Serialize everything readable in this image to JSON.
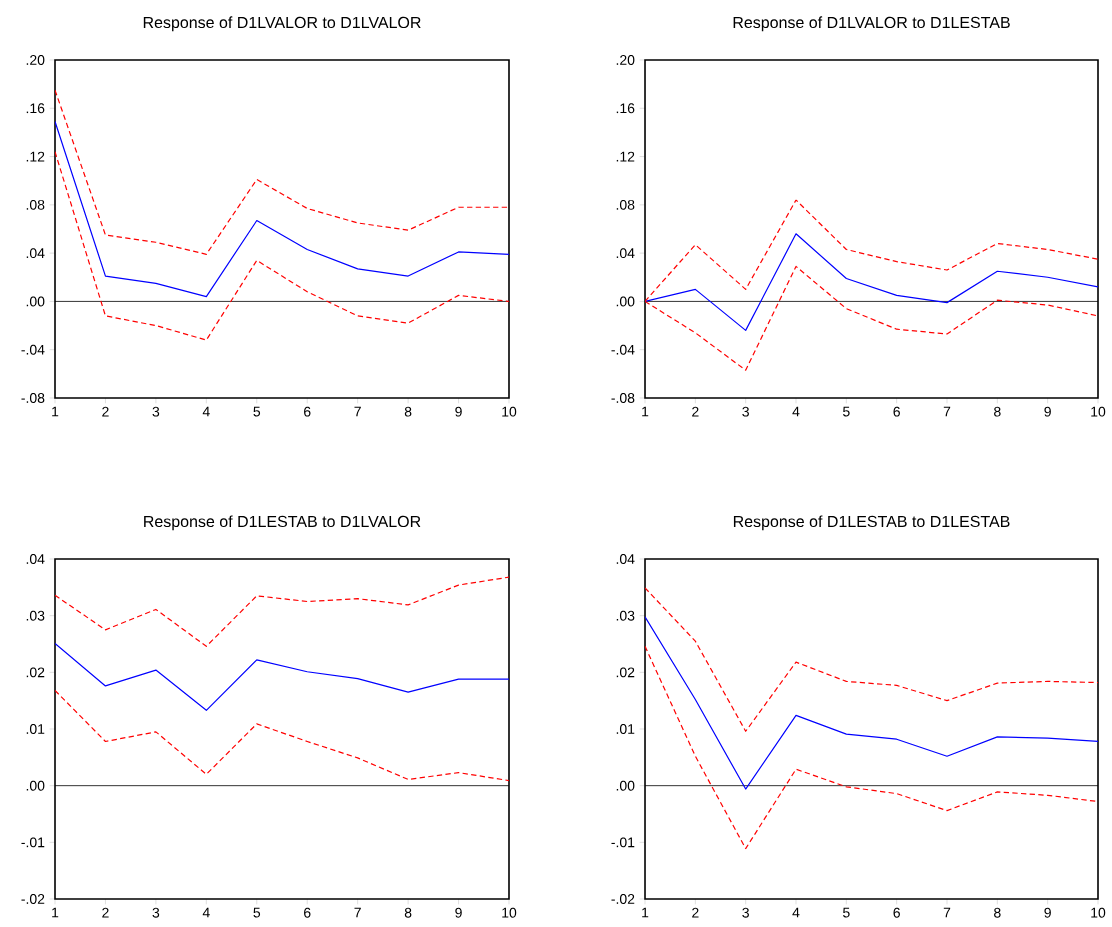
{
  "chart_data": [
    {
      "type": "line",
      "title": "Response of D1LVALOR to D1LVALOR",
      "x": [
        1,
        2,
        3,
        4,
        5,
        6,
        7,
        8,
        9,
        10
      ],
      "xlim": [
        1,
        10
      ],
      "xticks": [
        1,
        2,
        3,
        4,
        5,
        6,
        7,
        8,
        9,
        10
      ],
      "ylim": [
        -0.08,
        0.2
      ],
      "yticks": [
        {
          "value": -0.08,
          "label": "-.08"
        },
        {
          "value": -0.04,
          "label": "-.04"
        },
        {
          "value": 0,
          "label": ".00"
        },
        {
          "value": 0.04,
          "label": ".04"
        },
        {
          "value": 0.08,
          "label": ".08"
        },
        {
          "value": 0.12,
          "label": ".12"
        },
        {
          "value": 0.16,
          "label": ".16"
        },
        {
          "value": 0.2,
          "label": ".20"
        }
      ],
      "ref_lines": [
        {
          "axis": "y",
          "value": 0,
          "color": "#000000"
        }
      ],
      "series": [
        {
          "color": "#0000ff",
          "line_style": "solid",
          "values": [
            0.149,
            0.021,
            0.015,
            0.004,
            0.067,
            0.043,
            0.027,
            0.021,
            0.041,
            0.039
          ]
        },
        {
          "color": "#ff0000",
          "line_style": "dashed",
          "values": [
            0.175,
            0.055,
            0.049,
            0.039,
            0.101,
            0.077,
            0.065,
            0.059,
            0.078,
            0.078
          ]
        },
        {
          "color": "#ff0000",
          "line_style": "dashed",
          "values": [
            0.124,
            -0.012,
            -0.02,
            -0.032,
            0.034,
            0.008,
            -0.012,
            -0.018,
            0.005,
            0.0
          ]
        }
      ]
    },
    {
      "type": "line",
      "title": "Response of D1LVALOR to D1LESTAB",
      "x": [
        1,
        2,
        3,
        4,
        5,
        6,
        7,
        8,
        9,
        10
      ],
      "xlim": [
        1,
        10
      ],
      "xticks": [
        1,
        2,
        3,
        4,
        5,
        6,
        7,
        8,
        9,
        10
      ],
      "ylim": [
        -0.08,
        0.2
      ],
      "yticks": [
        {
          "value": -0.08,
          "label": "-.08"
        },
        {
          "value": -0.04,
          "label": "-.04"
        },
        {
          "value": 0,
          "label": ".00"
        },
        {
          "value": 0.04,
          "label": ".04"
        },
        {
          "value": 0.08,
          "label": ".08"
        },
        {
          "value": 0.12,
          "label": ".12"
        },
        {
          "value": 0.16,
          "label": ".16"
        },
        {
          "value": 0.2,
          "label": ".20"
        }
      ],
      "ref_lines": [
        {
          "axis": "y",
          "value": 0,
          "color": "#000000"
        }
      ],
      "series": [
        {
          "color": "#0000ff",
          "line_style": "solid",
          "values": [
            0.0,
            0.01,
            -0.024,
            0.056,
            0.019,
            0.005,
            -0.001,
            0.025,
            0.02,
            0.012
          ]
        },
        {
          "color": "#ff0000",
          "line_style": "dashed",
          "values": [
            0.0,
            0.047,
            0.01,
            0.084,
            0.043,
            0.033,
            0.026,
            0.048,
            0.043,
            0.035
          ]
        },
        {
          "color": "#ff0000",
          "line_style": "dashed",
          "values": [
            0.0,
            -0.026,
            -0.057,
            0.029,
            -0.006,
            -0.023,
            -0.027,
            0.001,
            -0.003,
            -0.012
          ]
        }
      ]
    },
    {
      "type": "line",
      "title": "Response of D1LESTAB to D1LVALOR",
      "x": [
        1,
        2,
        3,
        4,
        5,
        6,
        7,
        8,
        9,
        10
      ],
      "xlim": [
        1,
        10
      ],
      "xticks": [
        1,
        2,
        3,
        4,
        5,
        6,
        7,
        8,
        9,
        10
      ],
      "ylim": [
        -0.02,
        0.04
      ],
      "yticks": [
        {
          "value": -0.02,
          "label": "-.02"
        },
        {
          "value": -0.01,
          "label": "-.01"
        },
        {
          "value": 0,
          "label": ".00"
        },
        {
          "value": 0.01,
          "label": ".01"
        },
        {
          "value": 0.02,
          "label": ".02"
        },
        {
          "value": 0.03,
          "label": ".03"
        },
        {
          "value": 0.04,
          "label": ".04"
        }
      ],
      "ref_lines": [
        {
          "axis": "y",
          "value": 0,
          "color": "#000000"
        }
      ],
      "series": [
        {
          "color": "#0000ff",
          "line_style": "solid",
          "values": [
            0.0251,
            0.0176,
            0.0204,
            0.0133,
            0.0222,
            0.0201,
            0.0189,
            0.0165,
            0.0188,
            0.0188
          ]
        },
        {
          "color": "#ff0000",
          "line_style": "dashed",
          "values": [
            0.0336,
            0.0275,
            0.0311,
            0.0246,
            0.0335,
            0.0325,
            0.033,
            0.0319,
            0.0354,
            0.0368
          ]
        },
        {
          "color": "#ff0000",
          "line_style": "dashed",
          "values": [
            0.0168,
            0.0078,
            0.0095,
            0.002,
            0.0109,
            0.0078,
            0.0049,
            0.0011,
            0.0023,
            0.0009
          ]
        }
      ]
    },
    {
      "type": "line",
      "title": "Response of D1LESTAB to D1LESTAB",
      "x": [
        1,
        2,
        3,
        4,
        5,
        6,
        7,
        8,
        9,
        10
      ],
      "xlim": [
        1,
        10
      ],
      "xticks": [
        1,
        2,
        3,
        4,
        5,
        6,
        7,
        8,
        9,
        10
      ],
      "ylim": [
        -0.02,
        0.04
      ],
      "yticks": [
        {
          "value": -0.02,
          "label": "-.02"
        },
        {
          "value": -0.01,
          "label": "-.01"
        },
        {
          "value": 0,
          "label": ".00"
        },
        {
          "value": 0.01,
          "label": ".01"
        },
        {
          "value": 0.02,
          "label": ".02"
        },
        {
          "value": 0.03,
          "label": ".03"
        },
        {
          "value": 0.04,
          "label": ".04"
        }
      ],
      "ref_lines": [
        {
          "axis": "y",
          "value": 0,
          "color": "#000000"
        }
      ],
      "series": [
        {
          "color": "#0000ff",
          "line_style": "solid",
          "values": [
            0.0298,
            0.0152,
            -0.0006,
            0.0124,
            0.0091,
            0.0082,
            0.0052,
            0.0086,
            0.0084,
            0.0078
          ]
        },
        {
          "color": "#ff0000",
          "line_style": "dashed",
          "values": [
            0.0349,
            0.0255,
            0.0096,
            0.0218,
            0.0184,
            0.0177,
            0.015,
            0.0181,
            0.0184,
            0.0182
          ]
        },
        {
          "color": "#ff0000",
          "line_style": "dashed",
          "values": [
            0.0246,
            0.0052,
            -0.0111,
            0.0029,
            -0.0002,
            -0.0014,
            -0.0044,
            -0.0011,
            -0.0017,
            -0.0028
          ]
        }
      ]
    }
  ]
}
